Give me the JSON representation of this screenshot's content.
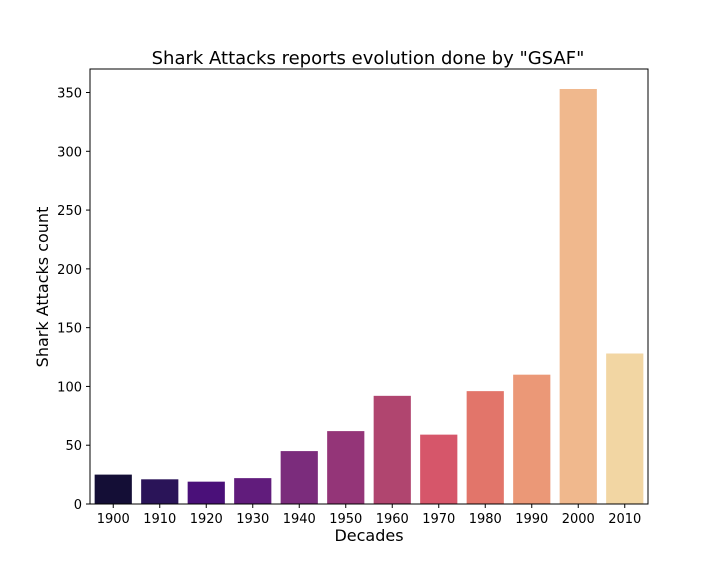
{
  "chart_data": {
    "type": "bar",
    "title": "Shark Attacks reports evolution done by \"GSAF\"",
    "xlabel": "Decades",
    "ylabel": "Shark Attacks count",
    "categories": [
      "1900",
      "1910",
      "1920",
      "1930",
      "1940",
      "1950",
      "1960",
      "1970",
      "1980",
      "1990",
      "2000",
      "2010"
    ],
    "values": [
      25,
      21,
      19,
      22,
      45,
      62,
      92,
      59,
      96,
      110,
      353,
      128
    ],
    "colors": [
      "#140e36",
      "#2a1458",
      "#4a1079",
      "#611c7c",
      "#7b2c7c",
      "#943578",
      "#b0456f",
      "#d6566a",
      "#e2756a",
      "#eb9877",
      "#f0b88d",
      "#f2d6a3"
    ],
    "ylim": [
      0,
      370
    ],
    "yticks": [
      0,
      50,
      100,
      150,
      200,
      250,
      300,
      350
    ],
    "grid": false,
    "legend": "none"
  }
}
